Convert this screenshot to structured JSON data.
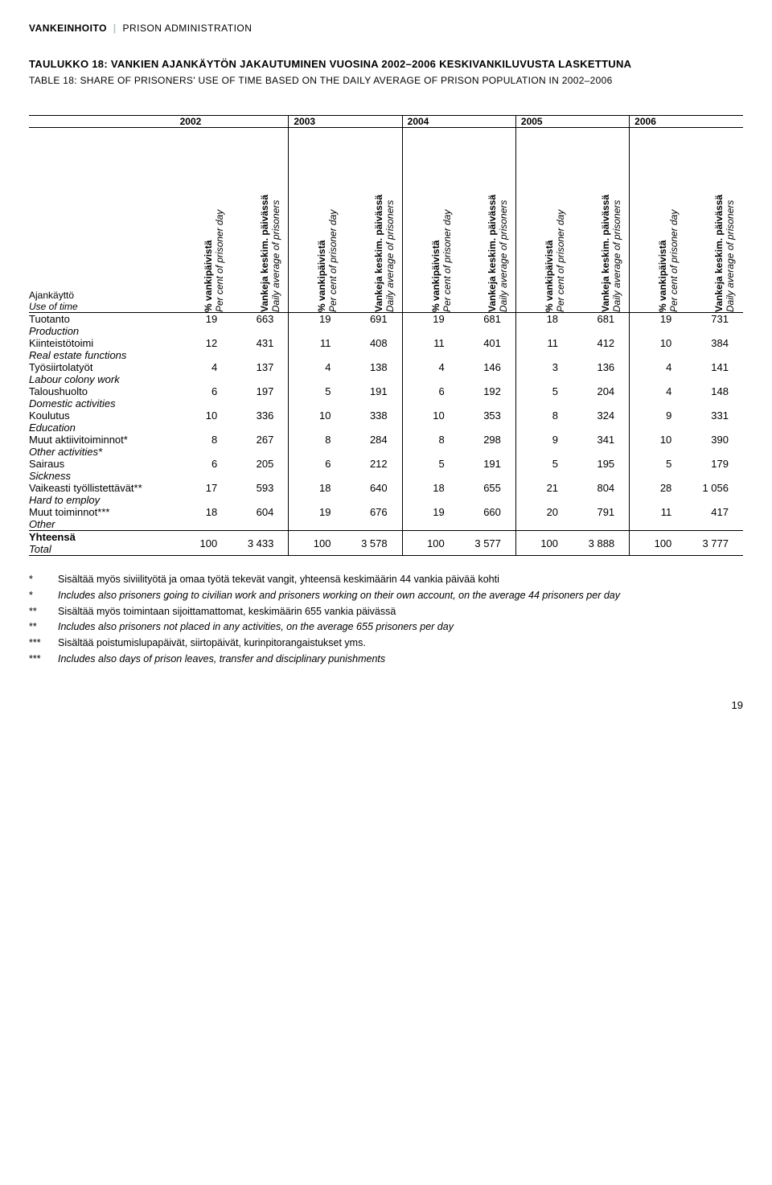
{
  "breadcrumb": {
    "fi": "VANKEINHOITO",
    "en": "PRISON ADMINISTRATION"
  },
  "title_fi": "TAULUKKO 18: VANKIEN AJANKÄYTÖN JAKAUTUMINEN VUOSINA 2002–2006 KESKIVANKILUVUSTA LASKETTUNA",
  "title_en": "TABLE 18: SHARE OF PRISONERS' USE OF TIME BASED ON THE DAILY AVERAGE OF PRISON POPULATION IN 2002–2006",
  "years": [
    "2002",
    "2003",
    "2004",
    "2005",
    "2006"
  ],
  "rowhead": {
    "fi": "Ajankäyttö",
    "en": "Use of time"
  },
  "colhead_pct": {
    "fi": "% vankipäivistä",
    "en": "Per cent of prisoner day"
  },
  "colhead_avg": {
    "fi": "Vankeja keskim. päivässä",
    "en": "Daily average of prisoners"
  },
  "rows": [
    {
      "fi": "Tuotanto",
      "en": "Production",
      "vals": [
        "19",
        "663",
        "19",
        "691",
        "19",
        "681",
        "18",
        "681",
        "19",
        "731"
      ]
    },
    {
      "fi": "Kiinteistötoimi",
      "en": "Real estate functions",
      "vals": [
        "12",
        "431",
        "11",
        "408",
        "11",
        "401",
        "11",
        "412",
        "10",
        "384"
      ]
    },
    {
      "fi": "Työsiirtolatyöt",
      "en": "Labour colony work",
      "vals": [
        "4",
        "137",
        "4",
        "138",
        "4",
        "146",
        "3",
        "136",
        "4",
        "141"
      ]
    },
    {
      "fi": "Taloushuolto",
      "en": "Domestic activities",
      "vals": [
        "6",
        "197",
        "5",
        "191",
        "6",
        "192",
        "5",
        "204",
        "4",
        "148"
      ]
    },
    {
      "fi": "Koulutus",
      "en": "Education",
      "vals": [
        "10",
        "336",
        "10",
        "338",
        "10",
        "353",
        "8",
        "324",
        "9",
        "331"
      ]
    },
    {
      "fi": "Muut aktiivitoiminnot*",
      "en": "Other activities*",
      "vals": [
        "8",
        "267",
        "8",
        "284",
        "8",
        "298",
        "9",
        "341",
        "10",
        "390"
      ]
    },
    {
      "fi": "Sairaus",
      "en": "Sickness",
      "vals": [
        "6",
        "205",
        "6",
        "212",
        "5",
        "191",
        "5",
        "195",
        "5",
        "179"
      ]
    },
    {
      "fi": "Vaikeasti työllistettävät**",
      "en": "Hard to employ",
      "vals": [
        "17",
        "593",
        "18",
        "640",
        "18",
        "655",
        "21",
        "804",
        "28",
        "1 056"
      ]
    },
    {
      "fi": "Muut toiminnot***",
      "en": "Other",
      "vals": [
        "18",
        "604",
        "19",
        "676",
        "19",
        "660",
        "20",
        "791",
        "11",
        "417"
      ]
    }
  ],
  "total": {
    "fi": "Yhteensä",
    "en": "Total",
    "vals": [
      "100",
      "3 433",
      "100",
      "3 578",
      "100",
      "3 577",
      "100",
      "3 888",
      "100",
      "3 777"
    ]
  },
  "footnotes": [
    {
      "mark": "*",
      "txt": "Sisältää myös siviilityötä ja omaa työtä tekevät vangit, yhteensä keskimäärin 44 vankia päivää kohti",
      "it": false
    },
    {
      "mark": "*",
      "txt": "Includes also prisoners going to civilian work and prisoners working on their own account, on the average 44 prisoners per day",
      "it": true
    },
    {
      "mark": "**",
      "txt": "Sisältää myös toimintaan sijoittamattomat, keskimäärin 655 vankia päivässä",
      "it": false
    },
    {
      "mark": "**",
      "txt": "Includes also prisoners not placed in any activities, on the average 655 prisoners per day",
      "it": true
    },
    {
      "mark": "***",
      "txt": "Sisältää poistumislupapäivät, siirtopäivät, kurinpitorangaistukset yms.",
      "it": false
    },
    {
      "mark": "***",
      "txt": "Includes also days of prison leaves, transfer and disciplinary punishments",
      "it": true
    }
  ],
  "page_number": "19"
}
